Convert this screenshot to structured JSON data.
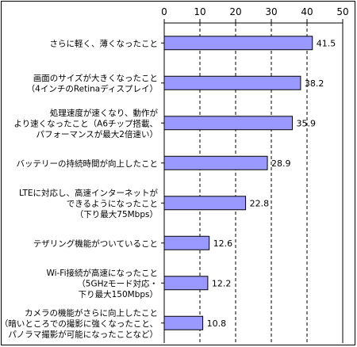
{
  "chart_data": {
    "type": "bar",
    "orientation": "horizontal",
    "xlim": [
      0,
      50
    ],
    "ticks": [
      0,
      10,
      20,
      30,
      40,
      50
    ],
    "grid": "vertical dashed",
    "bar_color": "#9999ff",
    "categories": [
      [
        "さらに軽く、薄くなったこと"
      ],
      [
        "画面のサイズが大きくなったこと",
        "（4インチのRetinaディスプレイ）"
      ],
      [
        "処理速度が速くなり、動作が",
        "より速くなったこと（A6チップ搭載、",
        "パフォーマンスが最大2倍速い）"
      ],
      [
        "バッテリーの持続時間が向上したこと"
      ],
      [
        "LTEに対応し、高速インターネットが",
        "できるようになったこと",
        "（下り最大75Mbps）"
      ],
      [
        "テザリング機能がついていること"
      ],
      [
        "Wi-Fi接続が高速になったこと",
        "（5GHzモード対応・",
        "下り最大150Mbps）"
      ],
      [
        "カメラの機能がさらに向上したこと",
        "（暗いところでの撮影に強くなったこと、",
        "パノラマ撮影が可能になったことなど）"
      ]
    ],
    "values": [
      41.5,
      38.2,
      35.9,
      28.9,
      22.8,
      12.6,
      12.2,
      10.8
    ],
    "value_labels": [
      "41.5",
      "38.2",
      "35.9",
      "28.9",
      "22.8",
      "12.6",
      "12.2",
      "10.8"
    ]
  }
}
